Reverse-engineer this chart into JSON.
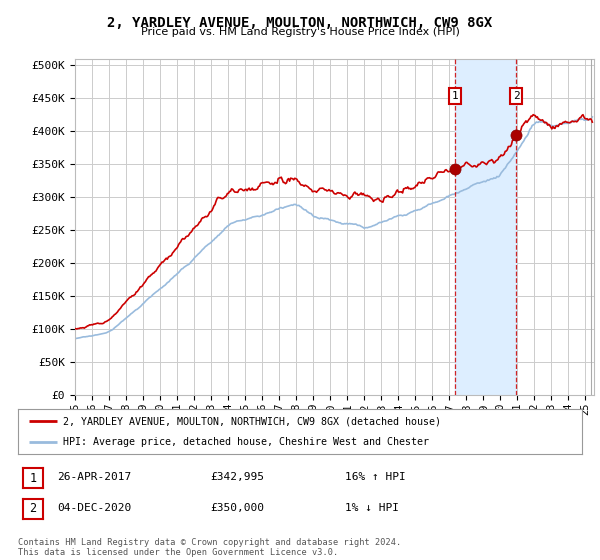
{
  "title": "2, YARDLEY AVENUE, MOULTON, NORTHWICH, CW9 8GX",
  "subtitle": "Price paid vs. HM Land Registry's House Price Index (HPI)",
  "ylabel_ticks": [
    "£0",
    "£50K",
    "£100K",
    "£150K",
    "£200K",
    "£250K",
    "£300K",
    "£350K",
    "£400K",
    "£450K",
    "£500K"
  ],
  "ytick_values": [
    0,
    50000,
    100000,
    150000,
    200000,
    250000,
    300000,
    350000,
    400000,
    450000,
    500000
  ],
  "ylim": [
    0,
    510000
  ],
  "xlim_start": 1995.0,
  "xlim_end": 2025.5,
  "transaction1": {
    "date": "26-APR-2017",
    "price": 342995,
    "hpi_pct": "16% ↑ HPI",
    "label": "1",
    "year": 2017.32
  },
  "transaction2": {
    "date": "04-DEC-2020",
    "price": 350000,
    "hpi_pct": "1% ↓ HPI",
    "label": "2",
    "year": 2020.92
  },
  "legend_line1": "2, YARDLEY AVENUE, MOULTON, NORTHWICH, CW9 8GX (detached house)",
  "legend_line2": "HPI: Average price, detached house, Cheshire West and Chester",
  "footer": "Contains HM Land Registry data © Crown copyright and database right 2024.\nThis data is licensed under the Open Government Licence v3.0.",
  "line_color_price": "#cc0000",
  "line_color_hpi": "#99bbdd",
  "bg_color": "#ffffff",
  "plot_bg": "#ffffff",
  "grid_color": "#cccccc",
  "shade_color": "#ddeeff",
  "xtick_years": [
    1995,
    1996,
    1997,
    1998,
    1999,
    2000,
    2001,
    2002,
    2003,
    2004,
    2005,
    2006,
    2007,
    2008,
    2009,
    2010,
    2011,
    2012,
    2013,
    2014,
    2015,
    2016,
    2017,
    2018,
    2019,
    2020,
    2021,
    2022,
    2023,
    2024,
    2025
  ]
}
